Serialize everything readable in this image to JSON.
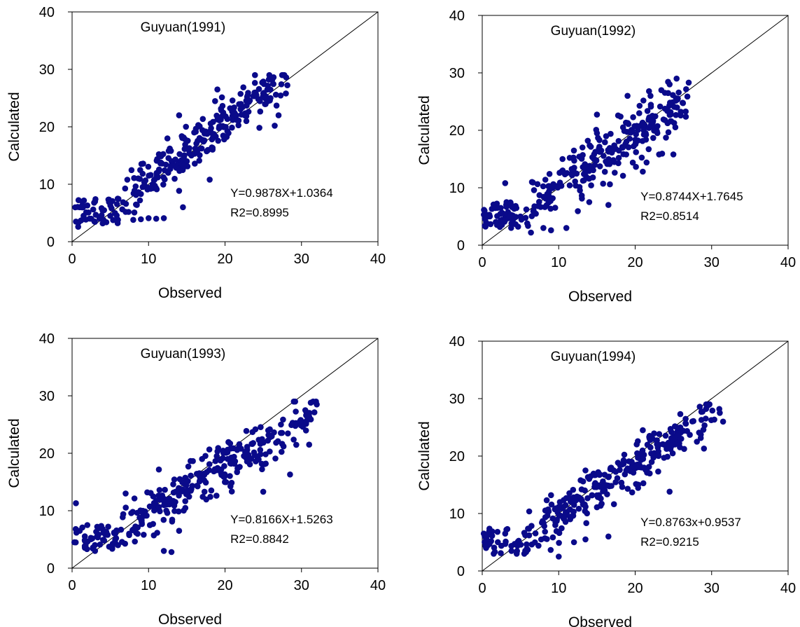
{
  "chart_data": [
    {
      "type": "scatter",
      "title": "Guyuan(1991)",
      "xlabel": "Observed",
      "ylabel": "Calculated",
      "xlim": [
        0,
        40
      ],
      "ylim": [
        0,
        40
      ],
      "xticks": [
        "0",
        "10",
        "20",
        "30",
        "40"
      ],
      "yticks": [
        "0",
        "10",
        "20",
        "30",
        "40"
      ],
      "equation": "Y=0.9878X+1.0364",
      "r2": "R2=0.8995",
      "slope": 0.9878,
      "intercept": 1.0364,
      "reference_line": "1:1",
      "x_range": [
        0.2,
        28.5
      ],
      "noise": 2.0,
      "seed": 11,
      "n_points": 330,
      "points": [
        [
          0.5,
          3.5
        ],
        [
          0.8,
          2.6
        ],
        [
          1.0,
          6.0
        ],
        [
          1.5,
          4.5
        ],
        [
          2.0,
          6.3
        ],
        [
          2.5,
          4.0
        ],
        [
          3.0,
          7.0
        ],
        [
          4.0,
          3.2
        ],
        [
          5.0,
          4.5
        ],
        [
          6.0,
          3.8
        ],
        [
          7.0,
          5.2
        ],
        [
          8.0,
          3.8
        ],
        [
          9.0,
          3.9
        ],
        [
          10.0,
          4.1
        ],
        [
          11.0,
          4.0
        ],
        [
          12.0,
          4.1
        ],
        [
          14.5,
          6.0
        ],
        [
          14.0,
          22.0
        ],
        [
          18.0,
          10.8
        ],
        [
          19.0,
          26.5
        ],
        [
          26.5,
          20.2
        ],
        [
          28.0,
          28.6
        ],
        [
          27.0,
          22.0
        ],
        [
          25.0,
          25.8
        ]
      ],
      "point_color": "#0a0a8a"
    },
    {
      "type": "scatter",
      "title": "Guyuan(1992)",
      "xlabel": "Observed",
      "ylabel": "Calculated",
      "xlim": [
        0,
        40
      ],
      "ylim": [
        0,
        40
      ],
      "xticks": [
        "0",
        "10",
        "20",
        "30",
        "40"
      ],
      "yticks": [
        "0",
        "10",
        "20",
        "30",
        "40"
      ],
      "equation": "Y=0.8744X+1.7645",
      "r2": "R2=0.8514",
      "slope": 0.8744,
      "intercept": 1.7645,
      "reference_line": "1:1",
      "x_range": [
        0.2,
        28.0
      ],
      "noise": 2.3,
      "seed": 23,
      "n_points": 330,
      "points": [
        [
          0.3,
          6.0
        ],
        [
          1.0,
          5.0
        ],
        [
          2.0,
          6.5
        ],
        [
          3.0,
          10.8
        ],
        [
          4.0,
          4.0
        ],
        [
          5.0,
          5.0
        ],
        [
          8.0,
          3.0
        ],
        [
          9.0,
          2.6
        ],
        [
          11.0,
          3.0
        ],
        [
          14.0,
          7.5
        ],
        [
          16.5,
          7.0
        ],
        [
          10.5,
          15.0
        ],
        [
          19.0,
          26.0
        ],
        [
          21.0,
          12.8
        ],
        [
          25.0,
          15.8
        ],
        [
          27.0,
          28.3
        ],
        [
          24.5,
          28.0
        ],
        [
          22.0,
          26.0
        ],
        [
          15.0,
          19.5
        ],
        [
          6.5,
          11.0
        ]
      ],
      "point_color": "#0a0a8a"
    },
    {
      "type": "scatter",
      "title": "Guyuan(1993)",
      "xlabel": "Observed",
      "ylabel": "Calculated",
      "xlim": [
        0,
        40
      ],
      "ylim": [
        0,
        40
      ],
      "xticks": [
        "0",
        "10",
        "20",
        "30",
        "40"
      ],
      "yticks": [
        "0",
        "10",
        "20",
        "30",
        "40"
      ],
      "equation": "Y=0.8166X+1.5263",
      "r2": "R2=0.8842",
      "slope": 0.8166,
      "intercept": 1.5263,
      "reference_line": "1:1",
      "x_range": [
        0.2,
        32.0
      ],
      "noise": 2.1,
      "seed": 37,
      "n_points": 330,
      "points": [
        [
          0.3,
          4.5
        ],
        [
          0.5,
          11.3
        ],
        [
          1.0,
          6.5
        ],
        [
          2.0,
          7.5
        ],
        [
          3.0,
          3.0
        ],
        [
          4.0,
          6.8
        ],
        [
          6.0,
          4.0
        ],
        [
          7.0,
          13.0
        ],
        [
          12.0,
          3.0
        ],
        [
          13.0,
          2.8
        ],
        [
          14.0,
          6.5
        ],
        [
          25.0,
          13.3
        ],
        [
          28.5,
          16.3
        ],
        [
          29.0,
          29.0
        ],
        [
          31.0,
          21.5
        ],
        [
          32.0,
          28.5
        ],
        [
          30.5,
          27.5
        ],
        [
          17.0,
          19.0
        ]
      ],
      "point_color": "#0a0a8a"
    },
    {
      "type": "scatter",
      "title": "Guyuan(1994)",
      "xlabel": "Observed",
      "ylabel": "Calculated",
      "xlim": [
        0,
        40
      ],
      "ylim": [
        0,
        40
      ],
      "xticks": [
        "0",
        "10",
        "20",
        "30",
        "40"
      ],
      "yticks": [
        "0",
        "10",
        "20",
        "30",
        "40"
      ],
      "equation": "Y=0.8763x+0.9537",
      "r2": "R2=0.9215",
      "slope": 0.8763,
      "intercept": 0.9537,
      "reference_line": "1:1",
      "x_range": [
        0.2,
        31.5
      ],
      "noise": 1.8,
      "seed": 51,
      "n_points": 330,
      "points": [
        [
          0.2,
          6.5
        ],
        [
          0.5,
          4.0
        ],
        [
          1.5,
          3.0
        ],
        [
          2.0,
          6.8
        ],
        [
          3.0,
          6.5
        ],
        [
          4.5,
          3.0
        ],
        [
          5.5,
          3.0
        ],
        [
          10.0,
          2.5
        ],
        [
          12.0,
          5.0
        ],
        [
          13.5,
          5.5
        ],
        [
          16.5,
          6.0
        ],
        [
          13.5,
          17.5
        ],
        [
          21.0,
          24.5
        ],
        [
          24.5,
          13.8
        ],
        [
          29.0,
          21.3
        ],
        [
          29.5,
          28.8
        ],
        [
          31.5,
          26.0
        ],
        [
          31.0,
          28.2
        ],
        [
          9.0,
          13.2
        ]
      ],
      "point_color": "#0a0a8a"
    }
  ]
}
